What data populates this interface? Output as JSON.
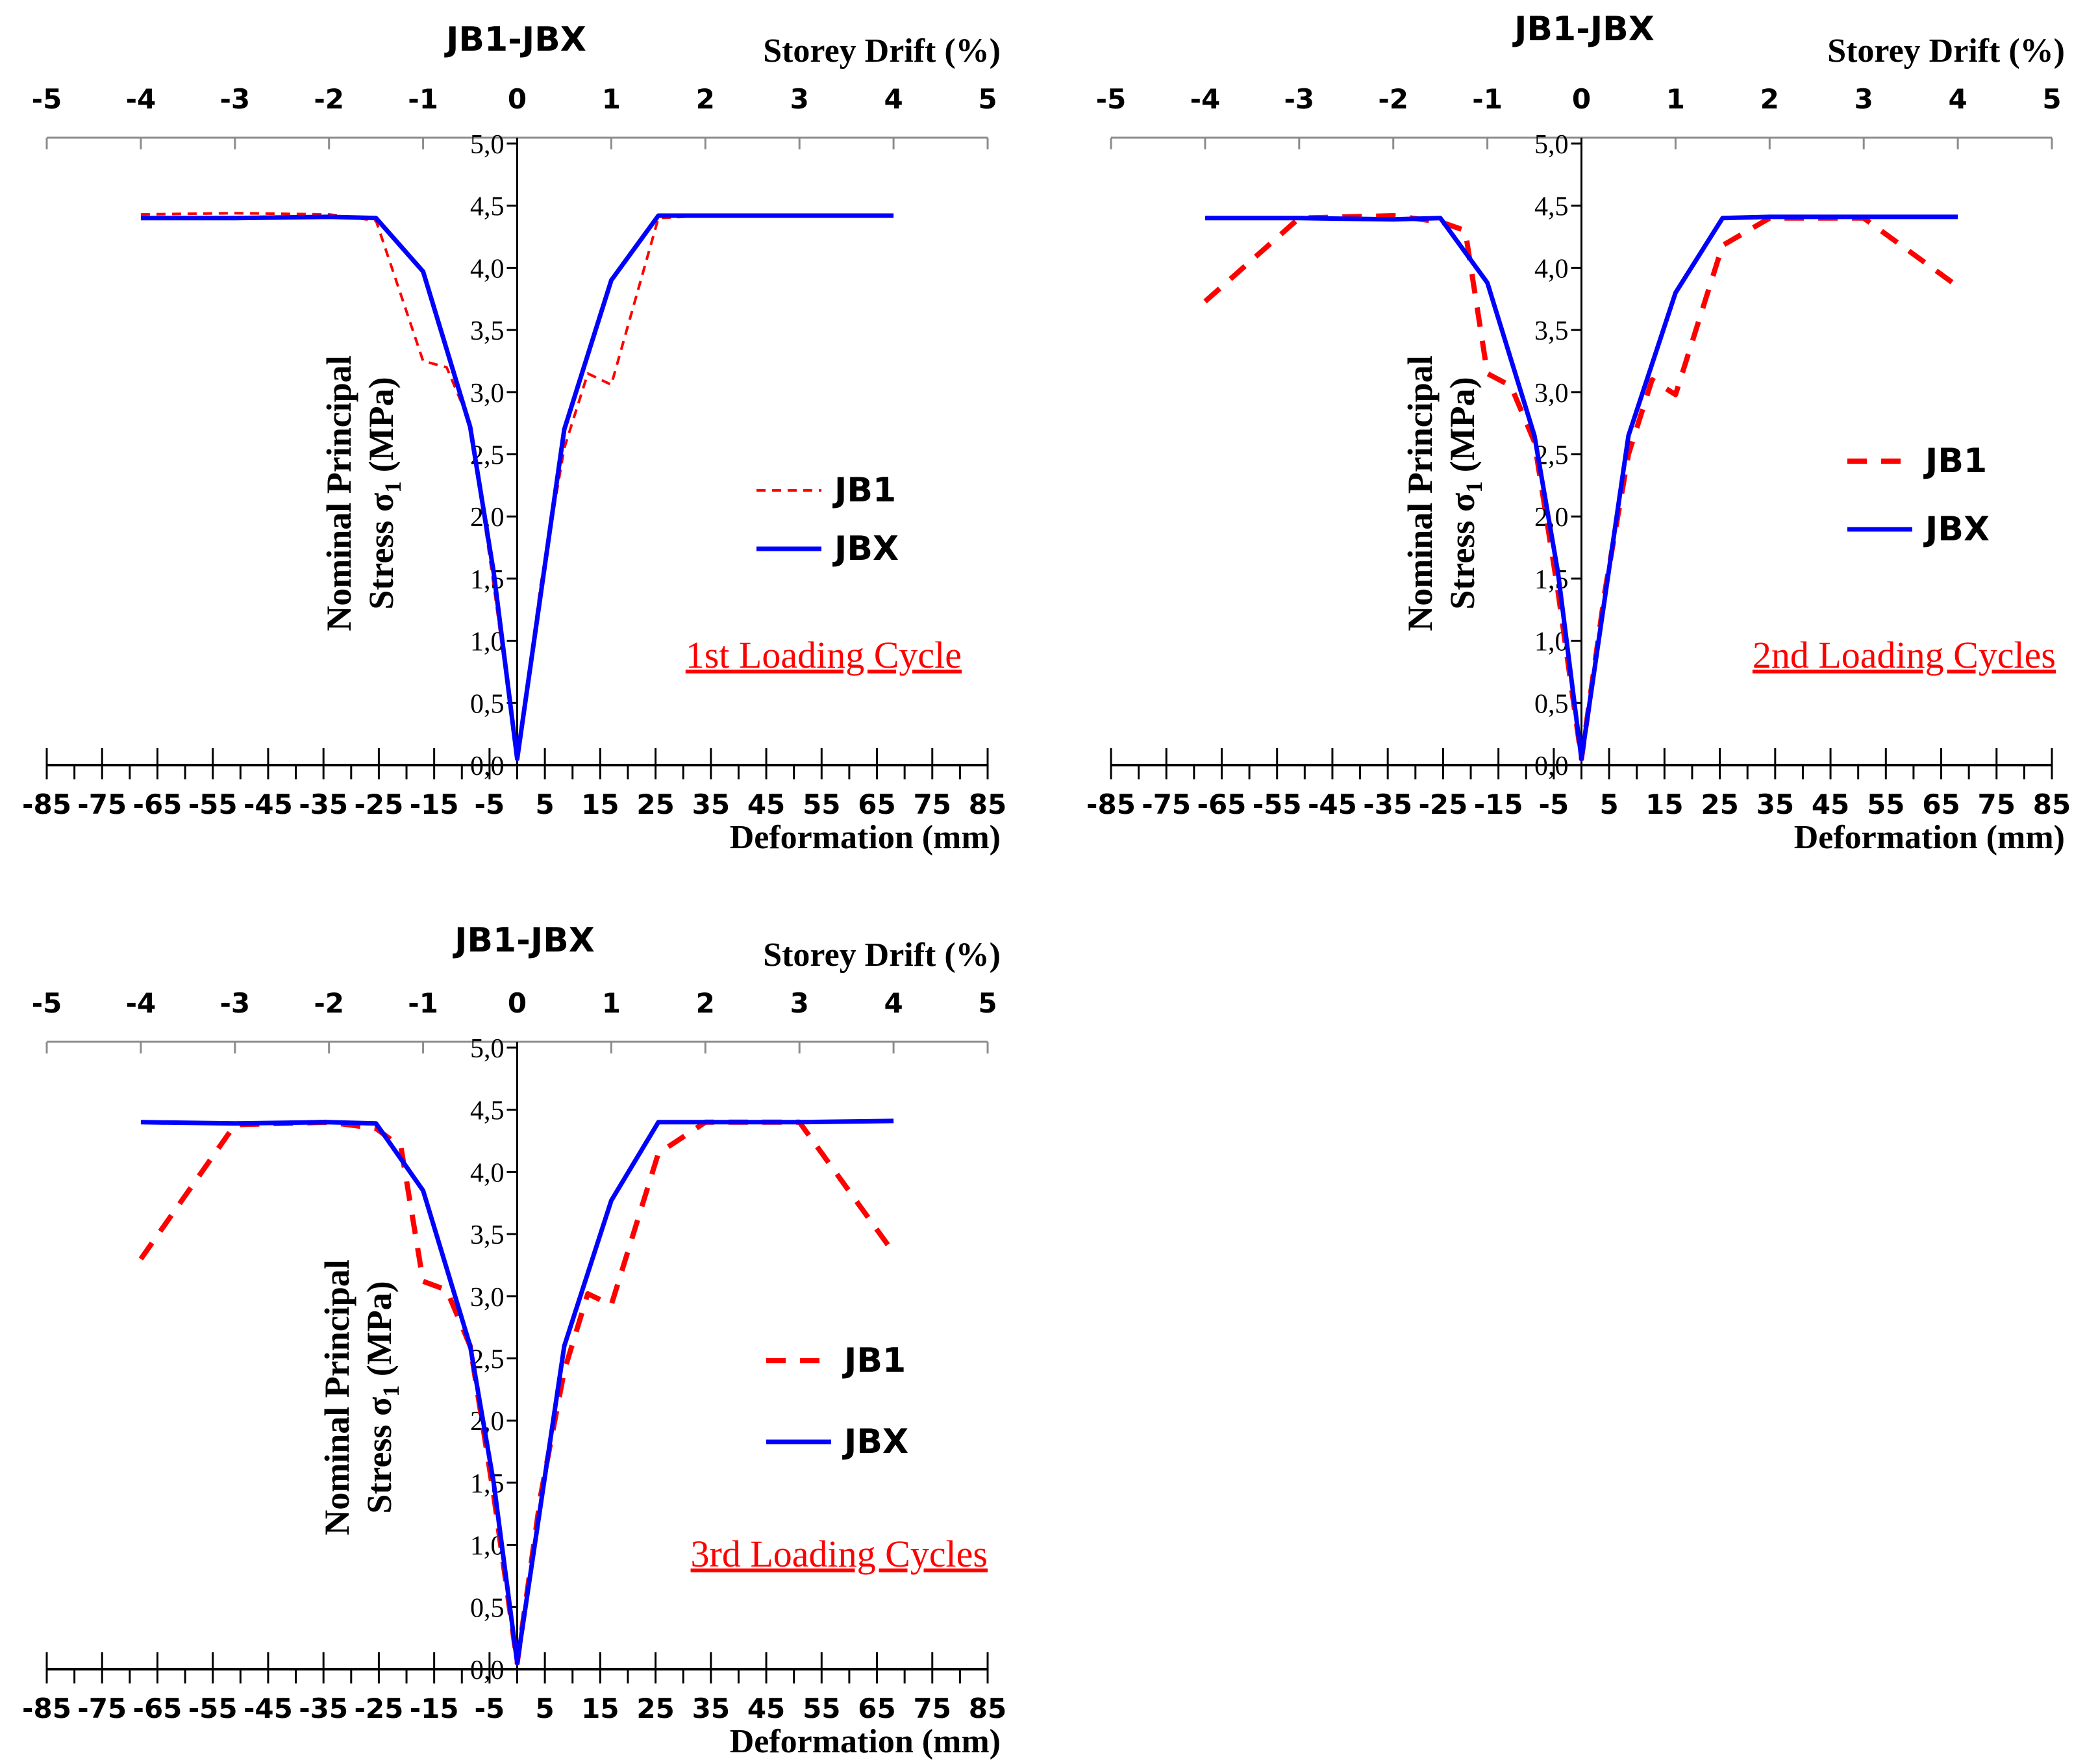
{
  "figure": {
    "panel_count": 3
  },
  "chart_data": [
    {
      "type": "line",
      "title": "JB1-JBX",
      "xlabel": "Deformation (mm)",
      "x2label": "Storey Drift (%)",
      "ylabel_line1": "Nominal Principal",
      "ylabel_line2": "Stress σ",
      "ylabel_sub": "1",
      "ylabel_unit": " (MPa)",
      "annotation": "1st Loading Cycle",
      "annotation_color": "#ff0000",
      "xlim": [
        -85,
        85
      ],
      "ylim": [
        0,
        5
      ],
      "x_ticks": [
        "-85",
        "-75",
        "-65",
        "-55",
        "-45",
        "-35",
        "-25",
        "-15",
        "-5",
        "5",
        "15",
        "25",
        "35",
        "45",
        "55",
        "65",
        "75",
        "85"
      ],
      "x2_ticks": [
        "-5",
        "-4",
        "-3",
        "-2",
        "-1",
        "0",
        "1",
        "2",
        "3",
        "4",
        "5"
      ],
      "y_ticks": [
        "0,0",
        "0,5",
        "1,0",
        "1,5",
        "2,0",
        "2,5",
        "3,0",
        "3,5",
        "4,0",
        "4,5",
        "5,0"
      ],
      "series": [
        {
          "name": "JB1",
          "color": "#ff0000",
          "style": "dashed-thin",
          "x": [
            -68,
            -51,
            -34,
            -25.5,
            -17,
            -12.75,
            -8.5,
            -4.25,
            0,
            4.25,
            8.5,
            12.75,
            17,
            25.5,
            34,
            51,
            68
          ],
          "y": [
            4.43,
            4.44,
            4.43,
            4.38,
            3.25,
            3.2,
            2.75,
            1.45,
            0.05,
            1.45,
            2.55,
            3.15,
            3.06,
            4.4,
            4.42,
            4.42,
            4.42
          ]
        },
        {
          "name": "JBX",
          "color": "#0000ff",
          "style": "solid",
          "x": [
            -68,
            -51,
            -34,
            -25.5,
            -17,
            -8.5,
            -4.25,
            0,
            8.5,
            17,
            25.5,
            34,
            51,
            68
          ],
          "y": [
            4.4,
            4.4,
            4.41,
            4.4,
            3.97,
            2.72,
            1.55,
            0.05,
            2.7,
            3.9,
            4.42,
            4.42,
            4.42,
            4.42
          ]
        }
      ]
    },
    {
      "type": "line",
      "title": "JB1-JBX",
      "xlabel": "Deformation (mm)",
      "x2label": "Storey Drift (%)",
      "ylabel_line1": "Nominal Principal",
      "ylabel_line2": "Stress σ",
      "ylabel_sub": "1",
      "ylabel_unit": " (MPa)",
      "annotation": "2nd Loading Cycles",
      "annotation_color": "#ff0000",
      "xlim": [
        -85,
        85
      ],
      "ylim": [
        0,
        5
      ],
      "x_ticks": [
        "-85",
        "-75",
        "-65",
        "-55",
        "-45",
        "-35",
        "-25",
        "-15",
        "-5",
        "5",
        "15",
        "25",
        "35",
        "45",
        "55",
        "65",
        "75",
        "85"
      ],
      "x2_ticks": [
        "-5",
        "-4",
        "-3",
        "-2",
        "-1",
        "0",
        "1",
        "2",
        "3",
        "4",
        "5"
      ],
      "y_ticks": [
        "0,0",
        "0,5",
        "1,0",
        "1,5",
        "2,0",
        "2,5",
        "3,0",
        "3,5",
        "4,0",
        "4,5",
        "5,0"
      ],
      "series": [
        {
          "name": "JB1",
          "color": "#ff0000",
          "style": "dashed-thick",
          "x": [
            -68,
            -51,
            -34,
            -25.5,
            -21,
            -17,
            -12.75,
            -8.5,
            -4.25,
            0,
            4.25,
            8.5,
            12.75,
            17,
            25.5,
            34,
            51,
            68
          ],
          "y": [
            3.73,
            4.4,
            4.42,
            4.37,
            4.3,
            3.15,
            3.05,
            2.6,
            1.4,
            0.05,
            1.4,
            2.5,
            3.1,
            2.98,
            4.18,
            4.4,
            4.4,
            3.85
          ]
        },
        {
          "name": "JBX",
          "color": "#0000ff",
          "style": "solid",
          "x": [
            -68,
            -51,
            -34,
            -25.5,
            -17,
            -8.5,
            -4.25,
            0,
            8.5,
            17,
            25.5,
            34,
            51,
            68
          ],
          "y": [
            4.4,
            4.4,
            4.39,
            4.4,
            3.88,
            2.65,
            1.55,
            0.05,
            2.65,
            3.8,
            4.4,
            4.41,
            4.41,
            4.41
          ]
        }
      ]
    },
    {
      "type": "line",
      "title": "JB1-JBX",
      "xlabel": "Deformation (mm)",
      "x2label": "Storey Drift (%)",
      "ylabel_line1": "Nominal Principal",
      "ylabel_line2": "Stress σ",
      "ylabel_sub": "1",
      "ylabel_unit": " (MPa)",
      "annotation": "3rd Loading Cycles",
      "annotation_color": "#ff0000",
      "xlim": [
        -85,
        85
      ],
      "ylim": [
        0,
        5
      ],
      "x_ticks": [
        "-85",
        "-75",
        "-65",
        "-55",
        "-45",
        "-35",
        "-25",
        "-15",
        "-5",
        "5",
        "15",
        "25",
        "35",
        "45",
        "55",
        "65",
        "75",
        "85"
      ],
      "x2_ticks": [
        "-5",
        "-4",
        "-3",
        "-2",
        "-1",
        "0",
        "1",
        "2",
        "3",
        "4",
        "5"
      ],
      "y_ticks": [
        "0,0",
        "0,5",
        "1,0",
        "1,5",
        "2,0",
        "2,5",
        "3,0",
        "3,5",
        "4,0",
        "4,5",
        "5,0"
      ],
      "series": [
        {
          "name": "JB1",
          "color": "#ff0000",
          "style": "dashed-thick",
          "x": [
            -68,
            -51,
            -34,
            -25.5,
            -21,
            -17,
            -12.75,
            -8.5,
            -4.25,
            0,
            4.25,
            8.5,
            12.75,
            17,
            25.5,
            34,
            51,
            68
          ],
          "y": [
            3.3,
            4.38,
            4.4,
            4.35,
            4.2,
            3.12,
            3.05,
            2.6,
            1.4,
            0.05,
            1.4,
            2.4,
            3.02,
            2.93,
            4.15,
            4.4,
            4.4,
            3.35
          ]
        },
        {
          "name": "JBX",
          "color": "#0000ff",
          "style": "solid",
          "x": [
            -68,
            -51,
            -34,
            -25.5,
            -17,
            -8.5,
            -4.25,
            0,
            8.5,
            17,
            25.5,
            34,
            51,
            68
          ],
          "y": [
            4.4,
            4.39,
            4.4,
            4.39,
            3.85,
            2.6,
            1.5,
            0.05,
            2.6,
            3.77,
            4.4,
            4.4,
            4.4,
            4.41
          ]
        }
      ]
    }
  ]
}
